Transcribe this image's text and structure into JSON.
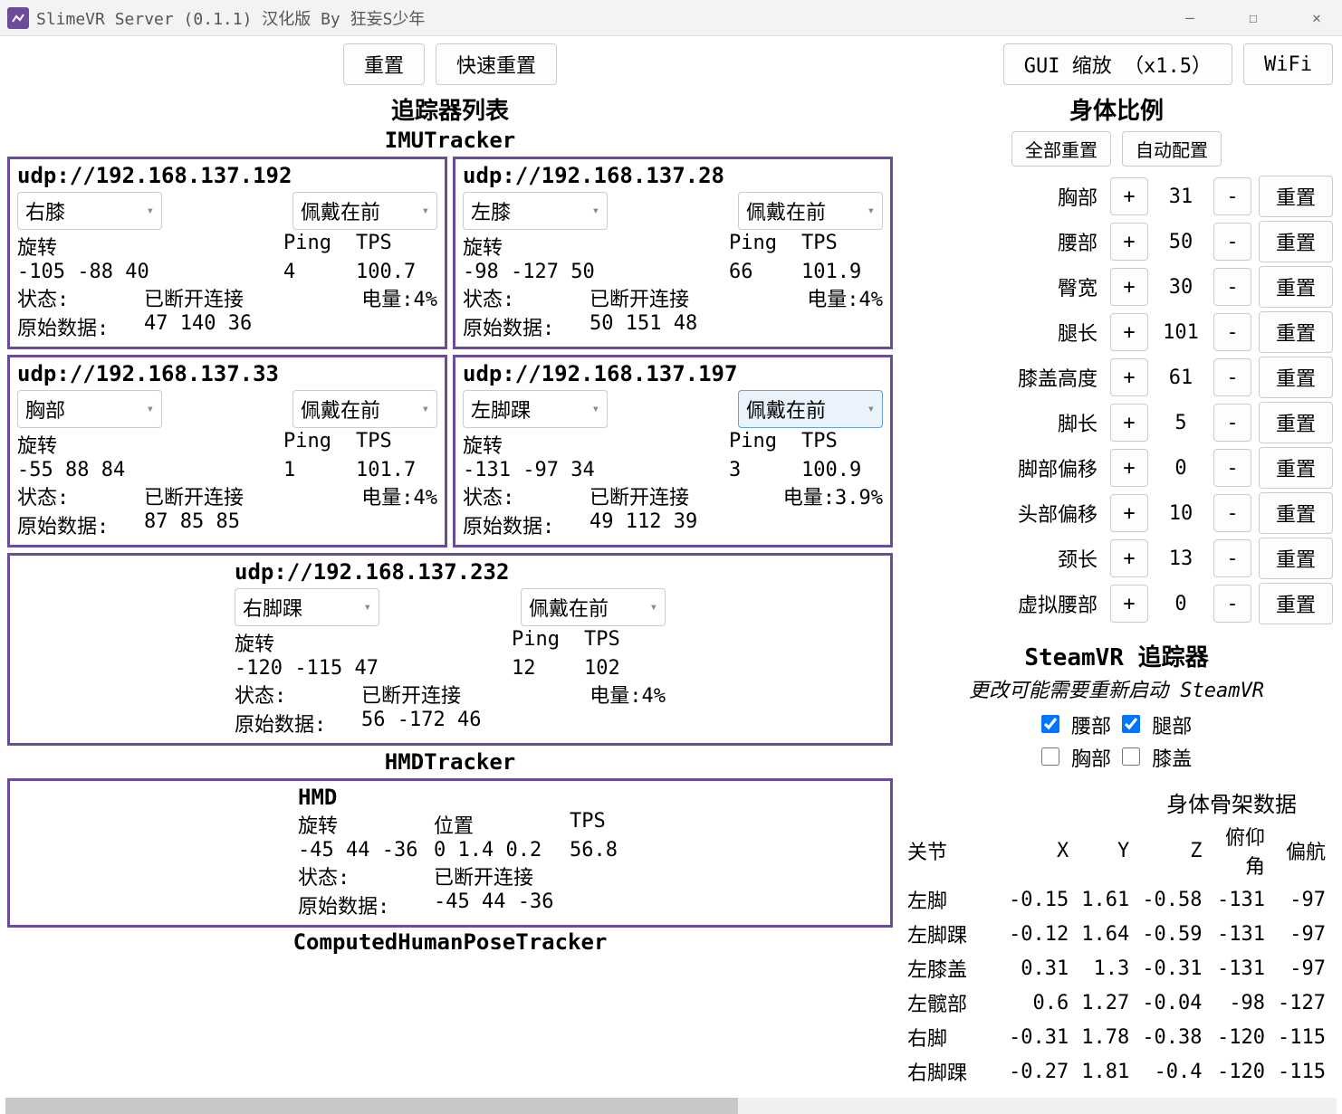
{
  "window": {
    "title": "SlimeVR Server (0.1.1) 汉化版 By 狂妄S少年"
  },
  "toolbar": {
    "reset": "重置",
    "quick_reset": "快速重置",
    "gui_zoom": "GUI 缩放 （x1.5）",
    "wifi": "WiFi"
  },
  "sections": {
    "tracker_list": "追踪器列表",
    "imu_tracker": "IMUTracker",
    "hmd_tracker": "HMDTracker",
    "computed": "ComputedHumanPoseTracker",
    "body_proportions": "身体比例",
    "steamvr_trackers": "SteamVR 追踪器",
    "skeleton_data": "身体骨架数据"
  },
  "labels": {
    "rotation": "旋转",
    "ping": "Ping",
    "tps": "TPS",
    "status": "状态:",
    "battery": "电量:",
    "raw": "原始数据:",
    "position": "位置",
    "disconnected": "已断开连接",
    "wear_front": "佩戴在前",
    "reset_all": "全部重置",
    "auto_config": "自动配置",
    "plus": "+",
    "minus": "-",
    "reset": "重置",
    "steamvr_note": "更改可能需要重新启动 SteamVR"
  },
  "trackers": [
    {
      "url": "udp://192.168.137.192",
      "body_part": "右膝",
      "mount": "佩戴在前",
      "rotation": "-105 -88 40",
      "ping": "4",
      "tps": "100.7",
      "status": "已断开连接",
      "battery": "4%",
      "raw": "47 140 36"
    },
    {
      "url": "udp://192.168.137.28",
      "body_part": "左膝",
      "mount": "佩戴在前",
      "rotation": "-98 -127 50",
      "ping": "66",
      "tps": "101.9",
      "status": "已断开连接",
      "battery": "4%",
      "raw": "50 151 48"
    },
    {
      "url": "udp://192.168.137.33",
      "body_part": "胸部",
      "mount": "佩戴在前",
      "rotation": "-55 88 84",
      "ping": "1",
      "tps": "101.7",
      "status": "已断开连接",
      "battery": "4%",
      "raw": "87 85 85"
    },
    {
      "url": "udp://192.168.137.197",
      "body_part": "左脚踝",
      "mount": "佩戴在前",
      "mount_highlight": true,
      "rotation": "-131 -97 34",
      "ping": "3",
      "tps": "100.9",
      "status": "已断开连接",
      "battery": "3.9%",
      "raw": "49 112 39"
    },
    {
      "url": "udp://192.168.137.232",
      "body_part": "右脚踝",
      "mount": "佩戴在前",
      "rotation": "-120 -115 47",
      "ping": "12",
      "tps": "102",
      "status": "已断开连接",
      "battery": "4%",
      "raw": "56 -172 46"
    }
  ],
  "hmd": {
    "title": "HMD",
    "rotation": "-45 44 -36",
    "position": "0 1.4 0.2",
    "tps": "56.8",
    "status": "已断开连接",
    "raw": "-45 44 -36"
  },
  "proportions": [
    {
      "label": "胸部",
      "val": "31"
    },
    {
      "label": "腰部",
      "val": "50"
    },
    {
      "label": "臀宽",
      "val": "30"
    },
    {
      "label": "腿长",
      "val": "101"
    },
    {
      "label": "膝盖高度",
      "val": "61"
    },
    {
      "label": "脚长",
      "val": "5"
    },
    {
      "label": "脚部偏移",
      "val": "0"
    },
    {
      "label": "头部偏移",
      "val": "10"
    },
    {
      "label": "颈长",
      "val": "13"
    },
    {
      "label": "虚拟腰部",
      "val": "0"
    }
  ],
  "steamvr_cb": {
    "waist": {
      "label": "腰部",
      "checked": true
    },
    "legs": {
      "label": "腿部",
      "checked": true
    },
    "chest": {
      "label": "胸部",
      "checked": false
    },
    "knees": {
      "label": "膝盖",
      "checked": false
    }
  },
  "skeleton": {
    "headers": [
      "关节",
      "X",
      "Y",
      "Z",
      "俯仰角",
      "偏航"
    ],
    "rows": [
      [
        "左脚",
        "-0.15",
        "1.61",
        "-0.58",
        "-131",
        "-97"
      ],
      [
        "左脚踝",
        "-0.12",
        "1.64",
        "-0.59",
        "-131",
        "-97"
      ],
      [
        "左膝盖",
        "0.31",
        "1.3",
        "-0.31",
        "-131",
        "-97"
      ],
      [
        "左髋部",
        "0.6",
        "1.27",
        "-0.04",
        "-98",
        "-127"
      ],
      [
        "右脚",
        "-0.31",
        "1.78",
        "-0.38",
        "-120",
        "-115"
      ],
      [
        "右脚踝",
        "-0.27",
        "1.81",
        "-0.4",
        "-120",
        "-115"
      ]
    ]
  },
  "colors": {
    "accent": "#6b4c9a"
  }
}
